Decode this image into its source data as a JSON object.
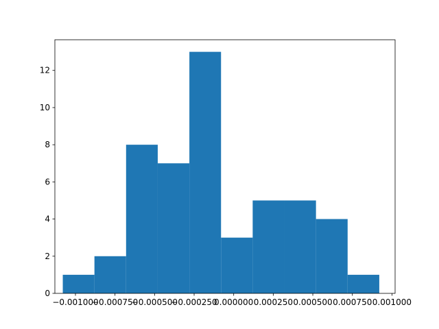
{
  "chart_data": {
    "type": "bar",
    "subtype": "histogram",
    "bins": [
      {
        "start": -0.00108,
        "end": -0.00088,
        "count": 1
      },
      {
        "start": -0.00088,
        "end": -0.00068,
        "count": 2
      },
      {
        "start": -0.00068,
        "end": -0.00048,
        "count": 8
      },
      {
        "start": -0.00048,
        "end": -0.00028,
        "count": 7
      },
      {
        "start": -0.00028,
        "end": -8e-05,
        "count": 13
      },
      {
        "start": -8e-05,
        "end": 0.00012,
        "count": 3
      },
      {
        "start": 0.00012,
        "end": 0.00032,
        "count": 5
      },
      {
        "start": 0.00032,
        "end": 0.00052,
        "count": 5
      },
      {
        "start": 0.00052,
        "end": 0.00072,
        "count": 4
      },
      {
        "start": 0.00072,
        "end": 0.00092,
        "count": 1
      }
    ],
    "x_ticks": [
      {
        "value": -0.001,
        "label": "−0.001000"
      },
      {
        "value": -0.00075,
        "label": "−0.000750"
      },
      {
        "value": -0.0005,
        "label": "−0.000500"
      },
      {
        "value": -0.00025,
        "label": "−0.000250"
      },
      {
        "value": 0.0,
        "label": "0.000000"
      },
      {
        "value": 0.00025,
        "label": "0.000250"
      },
      {
        "value": 0.0005,
        "label": "0.000500"
      },
      {
        "value": 0.00075,
        "label": "0.000750"
      },
      {
        "value": 0.001,
        "label": "0.001000"
      }
    ],
    "y_ticks": [
      0,
      2,
      4,
      6,
      8,
      10,
      12
    ],
    "xlim": [
      -0.00113,
      0.00102
    ],
    "ylim": [
      0,
      13.65
    ],
    "title": "",
    "xlabel": "",
    "ylabel": "",
    "grid": false,
    "colors": {
      "bar": "#1f77b4",
      "axes": "#000000",
      "background": "#ffffff"
    }
  }
}
